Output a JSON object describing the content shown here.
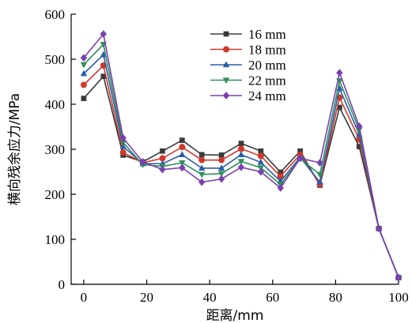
{
  "chart_data": {
    "type": "line",
    "xlabel": "距离/mm",
    "ylabel": "横向残余应力/MPa",
    "xlim": [
      -4,
      100
    ],
    "ylim": [
      0,
      600
    ],
    "xticks": [
      0,
      20,
      40,
      60,
      80,
      100
    ],
    "yticks": [
      0,
      100,
      200,
      300,
      400,
      500,
      600
    ],
    "grid": false,
    "legend_position": "top-right",
    "x": [
      0,
      6.25,
      12.5,
      18.75,
      25,
      31.25,
      37.5,
      43.75,
      50,
      56.25,
      62.5,
      68.75,
      75,
      81.25,
      87.5,
      93.75,
      100
    ],
    "series": [
      {
        "name": "16 mm",
        "color": "#3a3a3a",
        "marker": "square",
        "values": [
          413,
          462,
          287,
          272,
          296,
          320,
          288,
          287,
          313,
          296,
          249,
          296,
          220,
          393,
          306,
          124,
          15
        ]
      },
      {
        "name": "18 mm",
        "color": "#d0382b",
        "marker": "circle",
        "values": [
          443,
          486,
          293,
          270,
          280,
          305,
          276,
          276,
          301,
          285,
          240,
          288,
          222,
          415,
          322,
          124,
          15
        ]
      },
      {
        "name": "20 mm",
        "color": "#2b5ca8",
        "marker": "triangle-up",
        "values": [
          468,
          510,
          306,
          268,
          268,
          288,
          258,
          258,
          288,
          271,
          229,
          282,
          227,
          435,
          333,
          124,
          15
        ]
      },
      {
        "name": "22 mm",
        "color": "#2f8f5a",
        "marker": "triangle-down",
        "values": [
          488,
          533,
          315,
          266,
          262,
          270,
          244,
          246,
          273,
          259,
          222,
          279,
          244,
          452,
          343,
          124,
          15
        ]
      },
      {
        "name": "24 mm",
        "color": "#7b3fb0",
        "marker": "diamond",
        "values": [
          503,
          556,
          325,
          272,
          255,
          259,
          227,
          234,
          260,
          250,
          214,
          280,
          270,
          470,
          351,
          124,
          15
        ]
      }
    ]
  }
}
